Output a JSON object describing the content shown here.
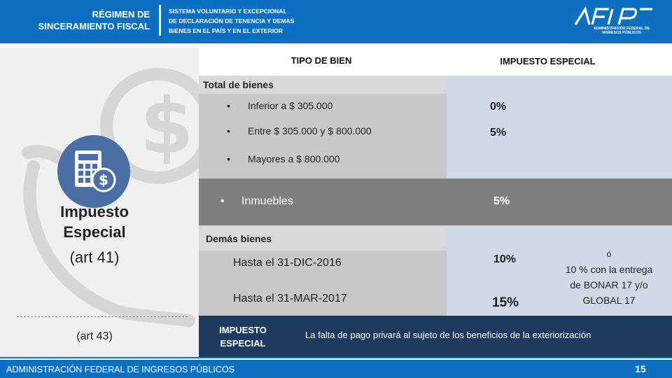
{
  "header": {
    "title_lines": [
      "RÉGIMEN DE",
      "SINCERAMIENTO FISCAL"
    ],
    "subtitle_lines": [
      "SISTEMA VOLUNTARIO Y EXCEPCIONAL",
      "DE DECLARACIÓN DE TENENCIA Y DEMAS",
      "BIENES EN EL PAÍS Y EN EL EXTERIOR"
    ],
    "logo_caption": [
      "ADMINISTRACIÓN FEDERAL DE",
      "INGRESOS PÚBLICOS"
    ]
  },
  "left_panel": {
    "icon": "calculator-dollar-icon",
    "title_bold_lines": [
      "Impuesto",
      "Especial"
    ],
    "title_art": "(art 41)",
    "secondary_art": "(art 43)"
  },
  "table": {
    "col1_header": "TIPO DE BIEN",
    "col2_header": "IMPUESTO ESPECIAL",
    "group1": {
      "label": "Total  de bienes",
      "rows": [
        {
          "text": "Inferior a $ 305.000",
          "rate": "0%"
        },
        {
          "text": "Entre $ 305.000 y $ 800.000",
          "rate": "5%"
        },
        {
          "text": "Mayores a $ 800.000",
          "rate": ""
        }
      ]
    },
    "inmuebles": {
      "text": "Inmuebles",
      "rate": "5%"
    },
    "group2": {
      "label": "Demás bienes",
      "rows": [
        {
          "text": "Hasta el 31-DIC-2016",
          "rate": "10%"
        },
        {
          "text": "Hasta el 31-MAR-2017",
          "rate": "15%"
        }
      ],
      "note_lines": [
        "ó",
        "10 % con la entrega",
        "de BONAR 17 y/o",
        "GLOBAL 17"
      ]
    }
  },
  "footer_note": {
    "label_lines": [
      "IMPUESTO",
      "ESPECIAL"
    ],
    "message": "La falta de pago privará al sujeto de los beneficios de la exteriorización"
  },
  "bottom_bar": {
    "org": "ADMINISTRACIÓN FEDERAL DE INGRESOS PÚBLICOS",
    "page_number": "15"
  },
  "colors": {
    "brand_blue": "#0c6fc0",
    "navy_note": "#1e3a5f",
    "inmuebles_band": "#7f7f7f",
    "right_column": "#d0dae6"
  }
}
